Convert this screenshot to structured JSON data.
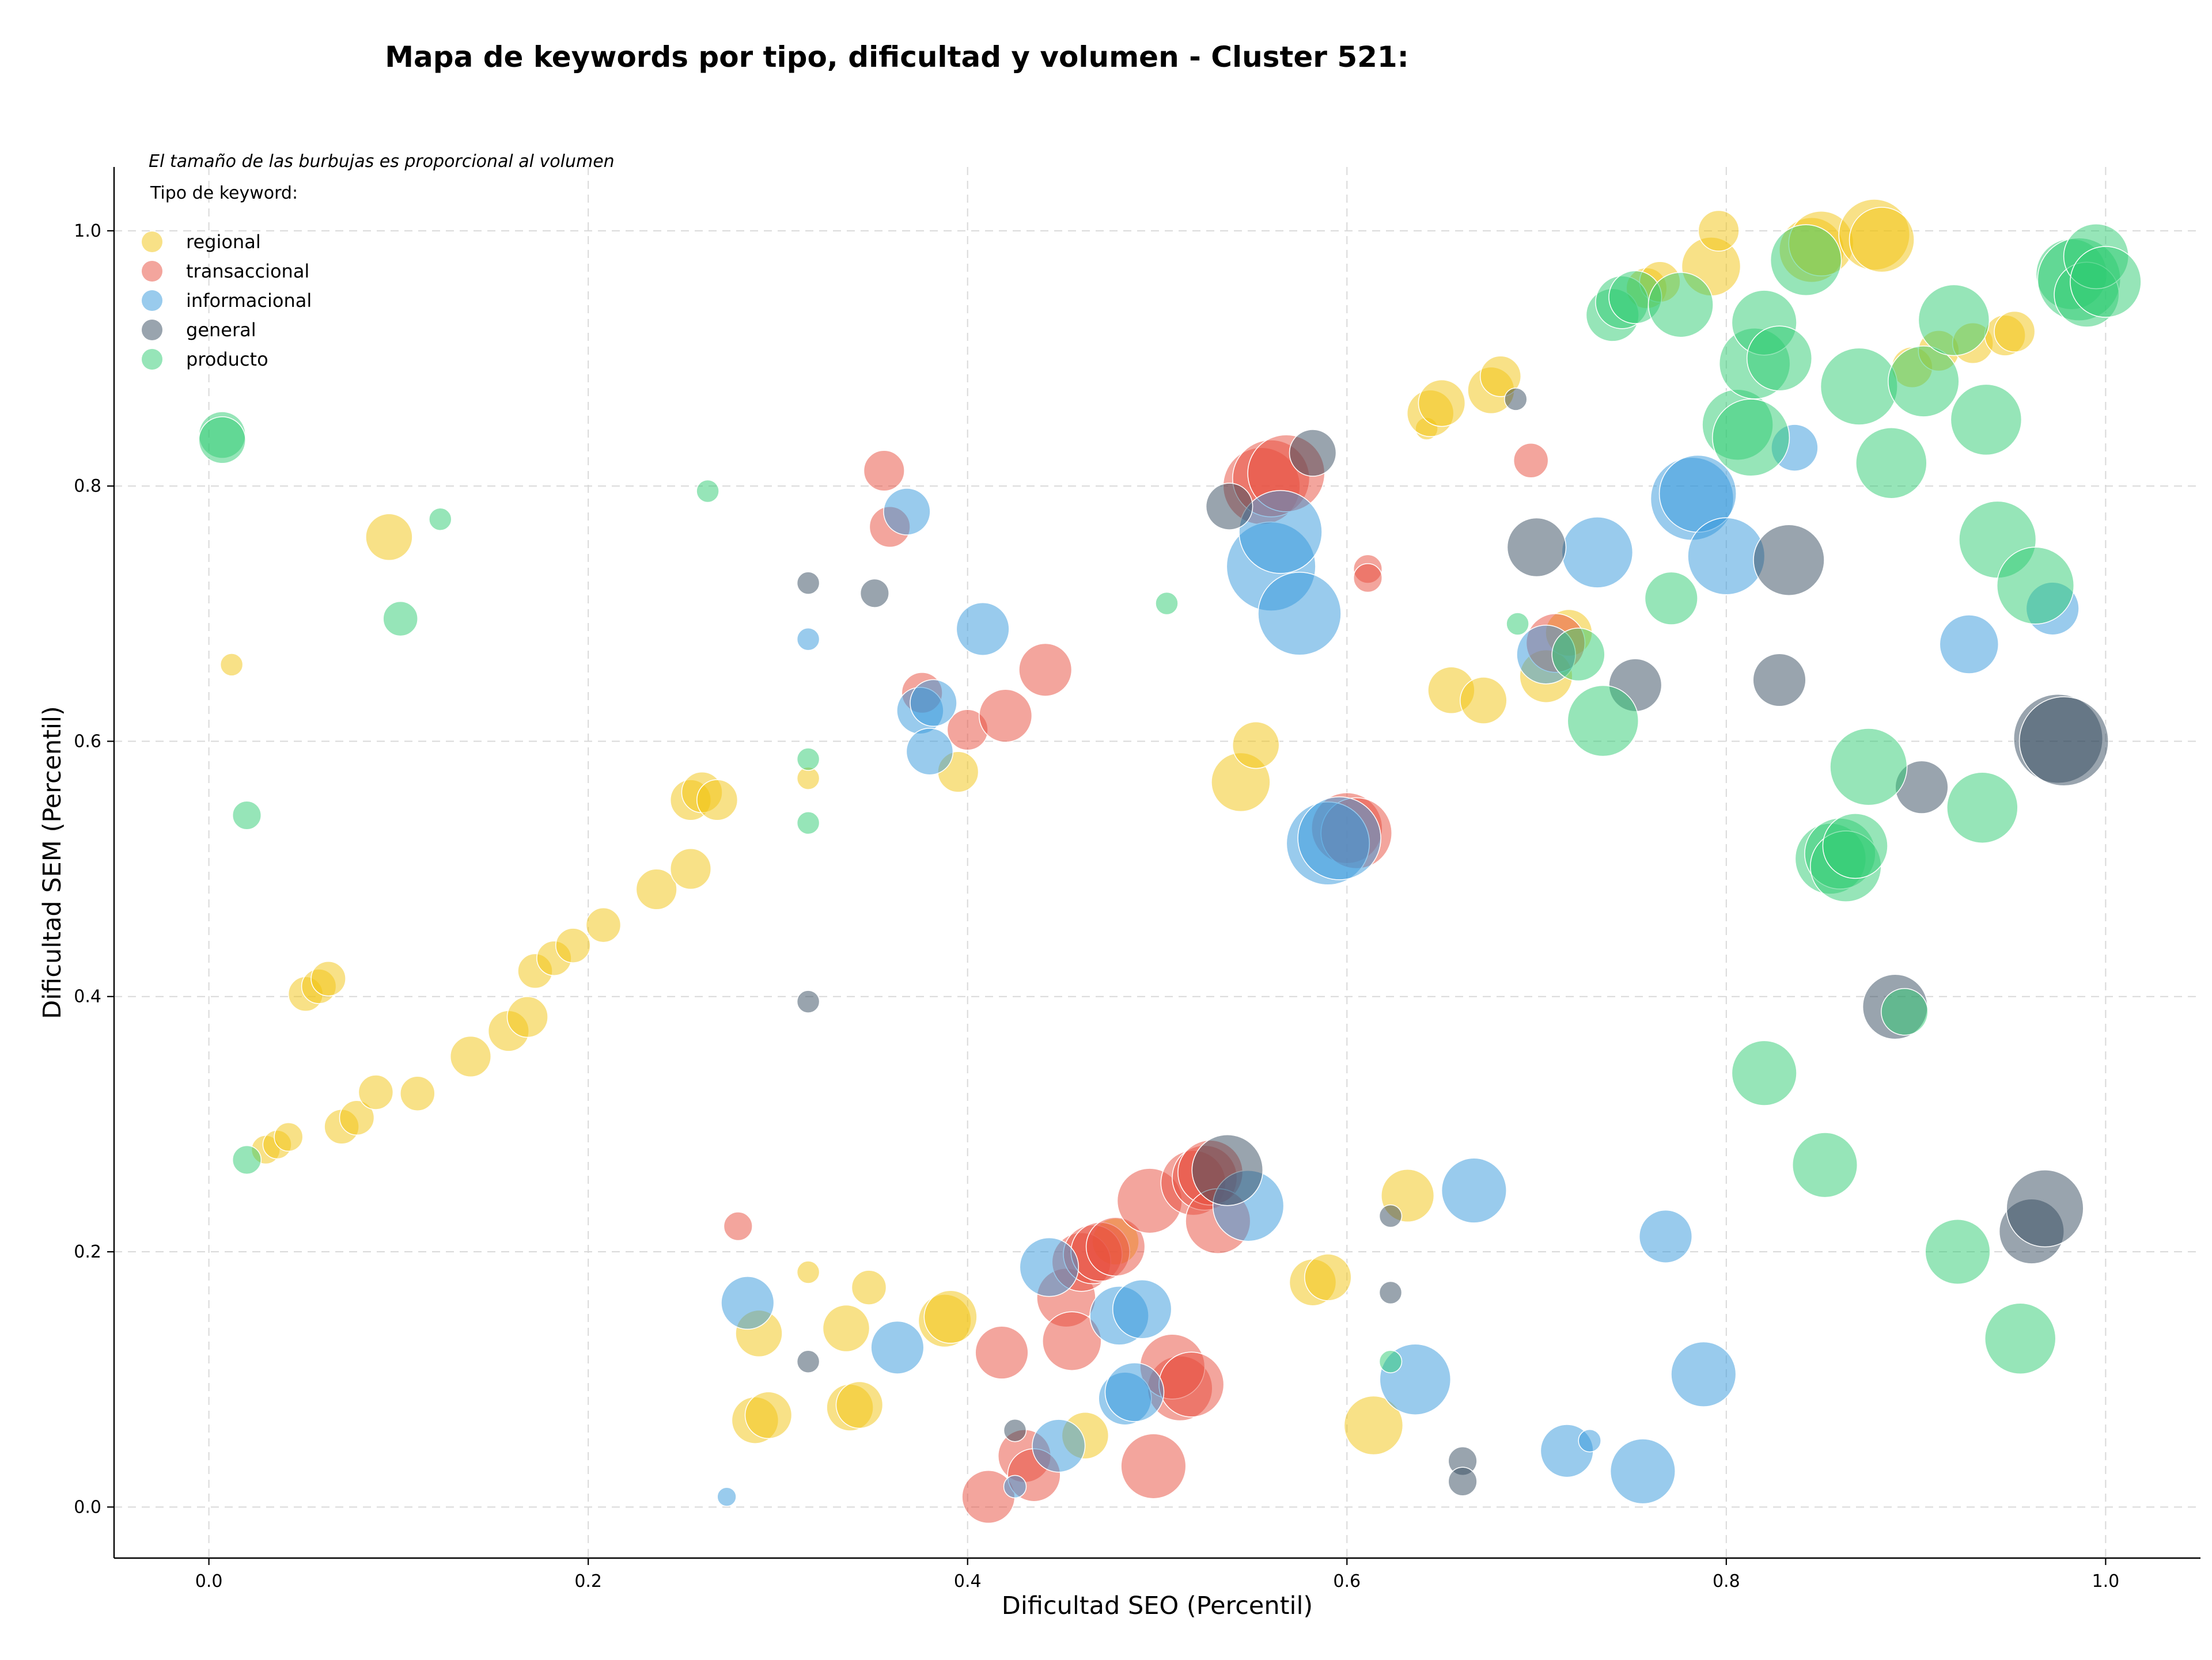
{
  "chart_data": {
    "type": "scatter",
    "title": "Mapa de keywords por tipo, dificultad y volumen - Cluster 521:",
    "xlabel": "Dificultad SEO (Percentil)",
    "ylabel": "Dificultad SEM (Percentil)",
    "size_note": "El tamaño de las burbujas es proporcional al volumen",
    "legend_title": "Tipo de keyword:",
    "legend_position": "upper-left",
    "grid": true,
    "xlim": [
      -0.05,
      1.05
    ],
    "ylim": [
      -0.04,
      1.05
    ],
    "x_ticks": [
      "0.0",
      "0.2",
      "0.4",
      "0.6",
      "0.8",
      "1.0"
    ],
    "y_ticks": [
      "0.0",
      "0.2",
      "0.4",
      "0.6",
      "0.8",
      "1.0"
    ],
    "series": [
      {
        "name": "regional",
        "color": "#f1c40f",
        "points": [
          [
            0.012,
            0.66,
            1
          ],
          [
            0.095,
            0.76,
            3
          ],
          [
            0.03,
            0.28,
            1.5
          ],
          [
            0.036,
            0.284,
            1.5
          ],
          [
            0.042,
            0.29,
            1.5
          ],
          [
            0.07,
            0.298,
            2
          ],
          [
            0.078,
            0.305,
            2
          ],
          [
            0.088,
            0.325,
            2
          ],
          [
            0.11,
            0.324,
            2
          ],
          [
            0.138,
            0.353,
            2.5
          ],
          [
            0.158,
            0.373,
            2.5
          ],
          [
            0.168,
            0.384,
            2.5
          ],
          [
            0.172,
            0.42,
            2
          ],
          [
            0.182,
            0.43,
            2
          ],
          [
            0.192,
            0.44,
            2
          ],
          [
            0.208,
            0.456,
            2
          ],
          [
            0.236,
            0.484,
            2.5
          ],
          [
            0.051,
            0.402,
            2
          ],
          [
            0.058,
            0.408,
            2
          ],
          [
            0.063,
            0.414,
            2
          ],
          [
            0.254,
            0.5,
            2.5
          ],
          [
            0.254,
            0.554,
            2.5
          ],
          [
            0.26,
            0.56,
            2.5
          ],
          [
            0.268,
            0.554,
            2.5
          ],
          [
            0.316,
            0.571,
            1
          ],
          [
            0.316,
            0.184,
            1
          ],
          [
            0.29,
            0.136,
            3
          ],
          [
            0.288,
            0.068,
            3
          ],
          [
            0.295,
            0.072,
            3
          ],
          [
            0.336,
            0.14,
            3
          ],
          [
            0.338,
            0.078,
            3
          ],
          [
            0.343,
            0.08,
            3
          ],
          [
            0.348,
            0.172,
            2
          ],
          [
            0.388,
            0.146,
            3.5
          ],
          [
            0.391,
            0.149,
            3.5
          ],
          [
            0.395,
            0.576,
            2.5
          ],
          [
            0.462,
            0.056,
            3
          ],
          [
            0.478,
            0.208,
            3
          ],
          [
            0.544,
            0.568,
            4
          ],
          [
            0.552,
            0.597,
            3
          ],
          [
            0.582,
            0.176,
            3
          ],
          [
            0.59,
            0.18,
            3
          ],
          [
            0.614,
            0.064,
            4
          ],
          [
            0.632,
            0.244,
            3.5
          ],
          [
            0.642,
            0.845,
            1
          ],
          [
            0.644,
            0.857,
            3
          ],
          [
            0.65,
            0.865,
            3
          ],
          [
            0.655,
            0.64,
            3
          ],
          [
            0.672,
            0.632,
            3
          ],
          [
            0.676,
            0.875,
            3
          ],
          [
            0.681,
            0.886,
            2.5
          ],
          [
            0.705,
            0.651,
            3.5
          ],
          [
            0.717,
            0.685,
            3
          ],
          [
            0.758,
            0.955,
            2.5
          ],
          [
            0.765,
            0.96,
            2.5
          ],
          [
            0.792,
            0.972,
            4
          ],
          [
            0.796,
            1.0,
            2.5
          ],
          [
            0.845,
            0.985,
            4.5
          ],
          [
            0.85,
            0.99,
            4.5
          ],
          [
            0.878,
            0.997,
            5
          ],
          [
            0.882,
            0.993,
            4.5
          ],
          [
            0.898,
            0.893,
            2.5
          ],
          [
            0.912,
            0.906,
            2.5
          ],
          [
            0.93,
            0.912,
            2.5
          ],
          [
            0.947,
            0.918,
            2.5
          ],
          [
            0.952,
            0.921,
            2.5
          ]
        ]
      },
      {
        "name": "transaccional",
        "color": "#e74c3c",
        "points": [
          [
            0.279,
            0.22,
            1.5
          ],
          [
            0.356,
            0.812,
            2.5
          ],
          [
            0.359,
            0.768,
            2.5
          ],
          [
            0.376,
            0.638,
            2.5
          ],
          [
            0.4,
            0.609,
            2.5
          ],
          [
            0.42,
            0.62,
            3.5
          ],
          [
            0.441,
            0.656,
            3.5
          ],
          [
            0.418,
            0.121,
            3.5
          ],
          [
            0.411,
            0.008,
            3.5
          ],
          [
            0.43,
            0.04,
            3.5
          ],
          [
            0.435,
            0.025,
            3.5
          ],
          [
            0.452,
            0.164,
            4
          ],
          [
            0.455,
            0.13,
            4
          ],
          [
            0.46,
            0.192,
            4
          ],
          [
            0.466,
            0.198,
            4
          ],
          [
            0.47,
            0.2,
            4
          ],
          [
            0.478,
            0.204,
            4
          ],
          [
            0.496,
            0.24,
            4.5
          ],
          [
            0.498,
            0.032,
            4.5
          ],
          [
            0.512,
            0.093,
            4.5
          ],
          [
            0.508,
            0.11,
            4.5
          ],
          [
            0.518,
            0.096,
            4.5
          ],
          [
            0.519,
            0.254,
            4.5
          ],
          [
            0.525,
            0.258,
            4.5
          ],
          [
            0.528,
            0.262,
            4.5
          ],
          [
            0.532,
            0.224,
            4.5
          ],
          [
            0.555,
            0.8,
            5.5
          ],
          [
            0.56,
            0.806,
            5.5
          ],
          [
            0.568,
            0.81,
            5.5
          ],
          [
            0.6,
            0.532,
            5
          ],
          [
            0.605,
            0.528,
            5
          ],
          [
            0.611,
            0.735,
            1.5
          ],
          [
            0.611,
            0.728,
            1.5
          ],
          [
            0.697,
            0.82,
            2
          ],
          [
            0.71,
            0.677,
            4
          ]
        ]
      },
      {
        "name": "informacional",
        "color": "#3498db",
        "points": [
          [
            0.273,
            0.008,
            0.7
          ],
          [
            0.284,
            0.16,
            3.5
          ],
          [
            0.316,
            0.68,
            1
          ],
          [
            0.363,
            0.125,
            3.5
          ],
          [
            0.368,
            0.78,
            3
          ],
          [
            0.375,
            0.624,
            3
          ],
          [
            0.382,
            0.63,
            3
          ],
          [
            0.38,
            0.592,
            3
          ],
          [
            0.408,
            0.688,
            3.5
          ],
          [
            0.443,
            0.188,
            4
          ],
          [
            0.448,
            0.048,
            3.5
          ],
          [
            0.425,
            0.016,
            1
          ],
          [
            0.48,
            0.15,
            4
          ],
          [
            0.483,
            0.085,
            3.5
          ],
          [
            0.488,
            0.09,
            4
          ],
          [
            0.492,
            0.155,
            4
          ],
          [
            0.548,
            0.236,
            5
          ],
          [
            0.56,
            0.737,
            6.5
          ],
          [
            0.565,
            0.764,
            6
          ],
          [
            0.575,
            0.7,
            6
          ],
          [
            0.59,
            0.52,
            6
          ],
          [
            0.596,
            0.524,
            6
          ],
          [
            0.636,
            0.1,
            5
          ],
          [
            0.667,
            0.248,
            4.5
          ],
          [
            0.705,
            0.668,
            4
          ],
          [
            0.732,
            0.748,
            5
          ],
          [
            0.716,
            0.044,
            3.5
          ],
          [
            0.728,
            0.052,
            1
          ],
          [
            0.756,
            0.028,
            4.5
          ],
          [
            0.768,
            0.212,
            3.5
          ],
          [
            0.782,
            0.79,
            6
          ],
          [
            0.785,
            0.794,
            5.5
          ],
          [
            0.788,
            0.104,
            4.5
          ],
          [
            0.8,
            0.745,
            5.5
          ],
          [
            0.836,
            0.83,
            3
          ],
          [
            0.928,
            0.676,
            4
          ],
          [
            0.972,
            0.704,
            3.5
          ]
        ]
      },
      {
        "name": "general",
        "color": "#34495e",
        "points": [
          [
            0.316,
            0.724,
            1
          ],
          [
            0.316,
            0.396,
            1
          ],
          [
            0.316,
            0.114,
            1
          ],
          [
            0.351,
            0.716,
            1.5
          ],
          [
            0.425,
            0.06,
            1
          ],
          [
            0.537,
            0.264,
            5
          ],
          [
            0.538,
            0.784,
            3
          ],
          [
            0.582,
            0.826,
            3
          ],
          [
            0.623,
            0.228,
            1
          ],
          [
            0.623,
            0.168,
            1
          ],
          [
            0.661,
            0.036,
            1.5
          ],
          [
            0.661,
            0.02,
            1.5
          ],
          [
            0.689,
            0.868,
            1
          ],
          [
            0.7,
            0.752,
            4
          ],
          [
            0.752,
            0.644,
            3.5
          ],
          [
            0.828,
            0.648,
            3.5
          ],
          [
            0.833,
            0.742,
            5
          ],
          [
            0.889,
            0.392,
            4.5
          ],
          [
            0.903,
            0.564,
            3.5
          ],
          [
            0.961,
            0.216,
            4.5
          ],
          [
            0.968,
            0.234,
            5.5
          ],
          [
            0.975,
            0.602,
            6.5
          ],
          [
            0.978,
            0.6,
            6.5
          ]
        ]
      },
      {
        "name": "producto",
        "color": "#2ecc71",
        "points": [
          [
            0.007,
            0.84,
            3
          ],
          [
            0.007,
            0.836,
            3
          ],
          [
            0.02,
            0.542,
            1.5
          ],
          [
            0.02,
            0.272,
            1.5
          ],
          [
            0.101,
            0.696,
            2
          ],
          [
            0.122,
            0.774,
            1
          ],
          [
            0.263,
            0.796,
            1
          ],
          [
            0.316,
            0.586,
            1
          ],
          [
            0.316,
            0.536,
            1
          ],
          [
            0.505,
            0.708,
            1
          ],
          [
            0.623,
            0.114,
            1
          ],
          [
            0.69,
            0.692,
            1
          ],
          [
            0.722,
            0.668,
            3.5
          ],
          [
            0.735,
            0.616,
            5
          ],
          [
            0.74,
            0.934,
            3.5
          ],
          [
            0.745,
            0.944,
            3.5
          ],
          [
            0.752,
            0.948,
            3.5
          ],
          [
            0.771,
            0.712,
            3.5
          ],
          [
            0.776,
            0.942,
            4.5
          ],
          [
            0.806,
            0.848,
            5
          ],
          [
            0.813,
            0.838,
            5.5
          ],
          [
            0.815,
            0.896,
            5
          ],
          [
            0.82,
            0.34,
            4.5
          ],
          [
            0.82,
            0.928,
            4.5
          ],
          [
            0.828,
            0.9,
            4.5
          ],
          [
            0.842,
            0.977,
            5
          ],
          [
            0.852,
            0.268,
            4.5
          ],
          [
            0.855,
            0.508,
            5
          ],
          [
            0.86,
            0.512,
            5
          ],
          [
            0.863,
            0.502,
            5
          ],
          [
            0.868,
            0.518,
            4.5
          ],
          [
            0.87,
            0.878,
            5.5
          ],
          [
            0.875,
            0.58,
            5.5
          ],
          [
            0.887,
            0.818,
            5
          ],
          [
            0.894,
            0.388,
            3
          ],
          [
            0.904,
            0.882,
            5
          ],
          [
            0.92,
            0.93,
            5
          ],
          [
            0.922,
            0.2,
            4.5
          ],
          [
            0.935,
            0.548,
            5
          ],
          [
            0.937,
            0.852,
            5
          ],
          [
            0.943,
            0.758,
            5.5
          ],
          [
            0.955,
            0.132,
            5
          ],
          [
            0.963,
            0.722,
            5.5
          ],
          [
            0.982,
            0.966,
            5
          ],
          [
            0.986,
            0.962,
            6
          ],
          [
            0.99,
            0.95,
            4.5
          ],
          [
            0.995,
            0.98,
            4.5
          ],
          [
            1.0,
            0.96,
            5
          ]
        ]
      }
    ]
  }
}
